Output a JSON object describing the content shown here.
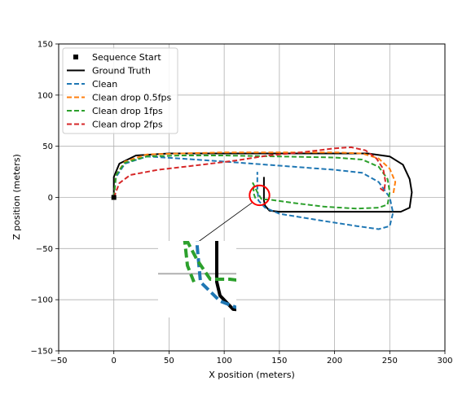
{
  "chart_data": {
    "type": "line",
    "xlabel": "X position (meters)",
    "ylabel": "Z position (meters)",
    "xlim": [
      -50,
      300
    ],
    "ylim": [
      -150,
      150
    ],
    "xticks": [
      -50,
      0,
      50,
      100,
      150,
      200,
      250,
      300
    ],
    "yticks": [
      -150,
      -100,
      -50,
      0,
      50,
      100,
      150
    ],
    "xtick_labels": [
      "−50",
      "0",
      "50",
      "100",
      "150",
      "200",
      "250",
      "300"
    ],
    "ytick_labels": [
      "−150",
      "−100",
      "−50",
      "0",
      "50",
      "100",
      "150"
    ],
    "grid": true,
    "legend_position": "top-left",
    "start_marker": {
      "name": "Sequence Start",
      "point": [
        0,
        0
      ],
      "color": "#000000"
    },
    "series": [
      {
        "name": "Ground Truth",
        "color": "#000000",
        "style": "solid",
        "points": [
          [
            0,
            0
          ],
          [
            0,
            20
          ],
          [
            5,
            33
          ],
          [
            20,
            41
          ],
          [
            50,
            43
          ],
          [
            100,
            43
          ],
          [
            150,
            43
          ],
          [
            200,
            43
          ],
          [
            230,
            43
          ],
          [
            250,
            40
          ],
          [
            262,
            32
          ],
          [
            268,
            18
          ],
          [
            270,
            5
          ],
          [
            268,
            -10
          ],
          [
            260,
            -14
          ],
          [
            230,
            -14
          ],
          [
            200,
            -14
          ],
          [
            170,
            -14
          ],
          [
            150,
            -14
          ],
          [
            141,
            -13
          ],
          [
            137,
            -8
          ],
          [
            136,
            -3
          ],
          [
            136,
            20
          ]
        ]
      },
      {
        "name": "Clean",
        "color": "#1f77b4",
        "style": "dashed",
        "points": [
          [
            0,
            0
          ],
          [
            2,
            20
          ],
          [
            10,
            33
          ],
          [
            30,
            40
          ],
          [
            60,
            38
          ],
          [
            100,
            35
          ],
          [
            150,
            31
          ],
          [
            200,
            27
          ],
          [
            225,
            24
          ],
          [
            240,
            15
          ],
          [
            250,
            0
          ],
          [
            253,
            -15
          ],
          [
            250,
            -28
          ],
          [
            240,
            -31
          ],
          [
            220,
            -28
          ],
          [
            190,
            -23
          ],
          [
            150,
            -16
          ],
          [
            137,
            -10
          ],
          [
            131,
            -3
          ],
          [
            130,
            10
          ],
          [
            130,
            25
          ]
        ]
      },
      {
        "name": "Clean drop 0.5fps",
        "color": "#ff7f0e",
        "style": "dashed",
        "points": [
          [
            0,
            0
          ],
          [
            2,
            22
          ],
          [
            10,
            35
          ],
          [
            30,
            42
          ],
          [
            60,
            43
          ],
          [
            100,
            44
          ],
          [
            150,
            44
          ],
          [
            200,
            44
          ],
          [
            225,
            43
          ],
          [
            240,
            38
          ],
          [
            250,
            28
          ],
          [
            255,
            15
          ],
          [
            253,
            2
          ]
        ]
      },
      {
        "name": "Clean drop 1fps",
        "color": "#2ca02c",
        "style": "dashed",
        "points": [
          [
            0,
            0
          ],
          [
            2,
            22
          ],
          [
            10,
            34
          ],
          [
            30,
            40
          ],
          [
            60,
            41
          ],
          [
            100,
            41
          ],
          [
            150,
            40
          ],
          [
            200,
            39
          ],
          [
            225,
            37
          ],
          [
            240,
            30
          ],
          [
            248,
            18
          ],
          [
            250,
            5
          ],
          [
            248,
            -7
          ],
          [
            240,
            -10
          ],
          [
            220,
            -11
          ],
          [
            190,
            -9
          ],
          [
            160,
            -5
          ],
          [
            140,
            -2
          ],
          [
            134,
            -2
          ],
          [
            130,
            5
          ],
          [
            126,
            14
          ],
          [
            127,
            3
          ],
          [
            129,
            -3
          ]
        ]
      },
      {
        "name": "Clean drop 2fps",
        "color": "#d62728",
        "style": "dashed",
        "points": [
          [
            0,
            0
          ],
          [
            5,
            14
          ],
          [
            15,
            22
          ],
          [
            40,
            27
          ],
          [
            80,
            32
          ],
          [
            110,
            36
          ],
          [
            140,
            41
          ],
          [
            170,
            44
          ],
          [
            200,
            48
          ],
          [
            215,
            49
          ],
          [
            228,
            46
          ],
          [
            238,
            38
          ],
          [
            244,
            28
          ],
          [
            246,
            16
          ],
          [
            245,
            6
          ],
          [
            240,
            10
          ]
        ]
      }
    ],
    "annotation": {
      "type": "zoom-inset",
      "circle_center": [
        132,
        2
      ],
      "circle_radius_data": 9
    }
  }
}
